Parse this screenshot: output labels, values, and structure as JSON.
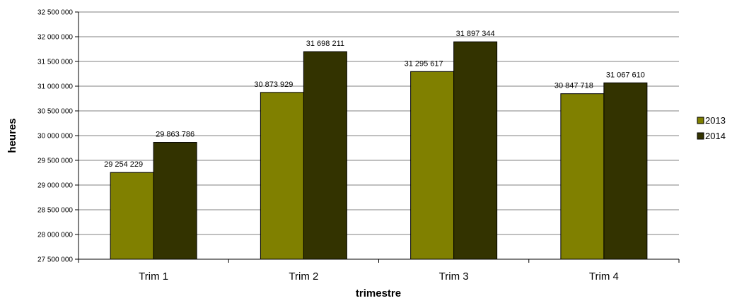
{
  "chart_data": {
    "type": "bar",
    "title": "",
    "xlabel": "trimestre",
    "ylabel": "heures",
    "categories": [
      "Trim 1",
      "Trim 2",
      "Trim 3",
      "Trim 4"
    ],
    "series": [
      {
        "name": "2013",
        "color": "#808000",
        "values": [
          29254229,
          30873929,
          31295617,
          30847718
        ],
        "labels": [
          "29 254 229",
          "30 873 929",
          "31 295 617",
          "30 847 718"
        ]
      },
      {
        "name": "2014",
        "color": "#333300",
        "values": [
          29863786,
          31698211,
          31897344,
          31067610
        ],
        "labels": [
          "29 863 786",
          "31 698 211",
          "31 897 344",
          "31 067 610"
        ]
      }
    ],
    "ylim": [
      27500000,
      32500000
    ],
    "ytick_step": 500000,
    "yticks": [
      "27 500 000",
      "28 000 000",
      "28 500 000",
      "29 000 000",
      "29 500 000",
      "30 000 000",
      "30 500 000",
      "31 000 000",
      "31 500 000",
      "32 000 000",
      "32 500 000"
    ],
    "grid": true,
    "legend": "right"
  }
}
